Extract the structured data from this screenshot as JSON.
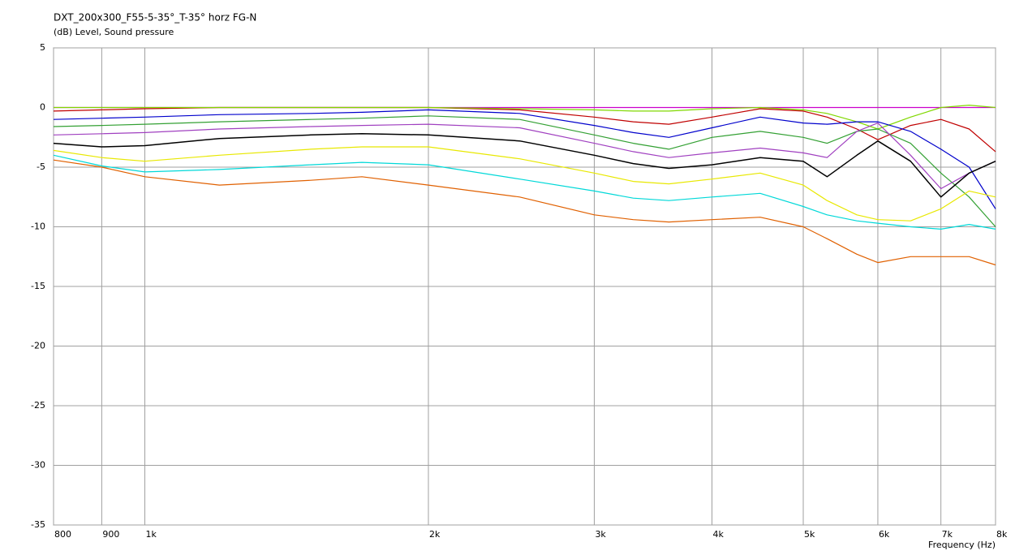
{
  "chart_data": {
    "type": "line",
    "title": "DXT_200x300_F55-5-35°_T-35° horz FG-N",
    "subtitle": "(dB)  Level, Sound pressure",
    "x_label": "Frequency (Hz)",
    "log_x": true,
    "grid": true,
    "x": [
      800,
      900,
      1000,
      1200,
      1500,
      1700,
      2000,
      2500,
      3000,
      3300,
      3600,
      4000,
      4500,
      5000,
      5300,
      5700,
      6000,
      6500,
      7000,
      7500,
      8000
    ],
    "xlim": [
      800,
      8000
    ],
    "xticks": [
      800,
      900,
      {
        "value": 1000,
        "label": "1k"
      },
      {
        "value": 2000,
        "label": "2k"
      },
      {
        "value": 3000,
        "label": "3k"
      },
      {
        "value": 4000,
        "label": "4k"
      },
      {
        "value": 5000,
        "label": "5k"
      },
      {
        "value": 6000,
        "label": "6k"
      },
      {
        "value": 7000,
        "label": "7k"
      },
      {
        "value": 8000,
        "label": "8k"
      }
    ],
    "ylim": [
      -35,
      5
    ],
    "yticks": [
      5,
      0,
      -5,
      -10,
      -15,
      -20,
      -25,
      -30,
      -35
    ],
    "series": [
      {
        "color": "#cc00cc",
        "values": [
          0,
          0,
          0,
          0,
          0,
          0,
          0,
          0,
          0,
          0,
          0,
          0,
          0,
          0,
          0,
          0,
          0,
          0,
          0,
          0,
          0
        ]
      },
      {
        "color": "#c00000",
        "values": [
          -0.3,
          -0.2,
          -0.1,
          0,
          0,
          0,
          0,
          -0.2,
          -0.8,
          -1.2,
          -1.4,
          -0.8,
          -0.1,
          -0.3,
          -0.8,
          -1.8,
          -2.7,
          -1.5,
          -1,
          -1.8,
          -3.7
        ]
      },
      {
        "color": "#80d800",
        "values": [
          0,
          0,
          0,
          0,
          0,
          0,
          0,
          -0.1,
          -0.2,
          -0.3,
          -0.3,
          -0.1,
          0,
          -0.2,
          -0.5,
          -1.2,
          -1.8,
          -0.8,
          0,
          0.2,
          0
        ]
      },
      {
        "color": "#0000cc",
        "values": [
          -1,
          -0.9,
          -0.8,
          -0.6,
          -0.5,
          -0.4,
          -0.2,
          -0.5,
          -1.5,
          -2.1,
          -2.5,
          -1.7,
          -0.8,
          -1.3,
          -1.4,
          -1.2,
          -1.2,
          -2,
          -3.5,
          -5,
          -8.5
        ]
      },
      {
        "color": "#33a033",
        "values": [
          -1.6,
          -1.5,
          -1.4,
          -1.2,
          -1,
          -0.9,
          -0.7,
          -1,
          -2.3,
          -3,
          -3.5,
          -2.5,
          -2,
          -2.5,
          -3,
          -2,
          -1.8,
          -3,
          -5.5,
          -7.5,
          -10
        ]
      },
      {
        "color": "#a040c0",
        "values": [
          -2.3,
          -2.2,
          -2.1,
          -1.8,
          -1.6,
          -1.5,
          -1.4,
          -1.7,
          -3,
          -3.7,
          -4.2,
          -3.8,
          -3.4,
          -3.8,
          -4.2,
          -2,
          -1.3,
          -4,
          -6.8,
          -5.5,
          -4.5
        ]
      },
      {
        "color": "#000000",
        "values": [
          -3,
          -3.3,
          -3.2,
          -2.6,
          -2.3,
          -2.2,
          -2.3,
          -2.8,
          -4,
          -4.7,
          -5.1,
          -4.8,
          -4.2,
          -4.5,
          -5.8,
          -4,
          -2.8,
          -4.5,
          -7.5,
          -5.5,
          -4.5
        ]
      },
      {
        "color": "#e8e800",
        "values": [
          -3.6,
          -4.2,
          -4.5,
          -4,
          -3.5,
          -3.3,
          -3.3,
          -4.3,
          -5.5,
          -6.2,
          -6.4,
          -6,
          -5.5,
          -6.5,
          -7.8,
          -9,
          -9.4,
          -9.5,
          -8.5,
          -7,
          -7.5
        ]
      },
      {
        "color": "#00d8d8",
        "values": [
          -4,
          -4.9,
          -5.4,
          -5.2,
          -4.8,
          -4.6,
          -4.8,
          -6,
          -7,
          -7.6,
          -7.8,
          -7.5,
          -7.2,
          -8.3,
          -9,
          -9.5,
          -9.7,
          -10,
          -10.2,
          -9.8,
          -10.2
        ]
      },
      {
        "color": "#e06000",
        "values": [
          -4.4,
          -5,
          -5.8,
          -6.5,
          -6.1,
          -5.8,
          -6.5,
          -7.5,
          -9,
          -9.4,
          -9.6,
          -9.4,
          -9.2,
          -10,
          -11,
          -12.3,
          -13,
          -12.5,
          -12.5,
          -12.5,
          -13.2
        ]
      }
    ]
  }
}
